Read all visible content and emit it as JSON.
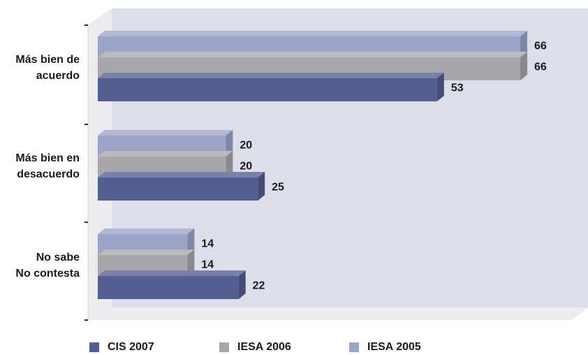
{
  "chart_data": {
    "type": "bar",
    "orientation": "horizontal",
    "categories": [
      [
        "Más bien de",
        "acuerdo"
      ],
      [
        "Más bien en",
        "desacuerdo"
      ],
      [
        "No sabe",
        "No contesta"
      ]
    ],
    "series": [
      {
        "name": "IESA 2005",
        "values": [
          66,
          20,
          14
        ],
        "color": "#9ca4c8"
      },
      {
        "name": "IESA 2006",
        "values": [
          66,
          20,
          14
        ],
        "color": "#a8a8ac"
      },
      {
        "name": "CIS 2007",
        "values": [
          53,
          25,
          22
        ],
        "color": "#535e92"
      }
    ],
    "legend_order": [
      "CIS 2007",
      "IESA 2006",
      "IESA 2005"
    ],
    "legend_position": "bottom",
    "xlim": [
      0,
      66
    ],
    "style": "3d",
    "grid": false,
    "background_color": "#dcdeea"
  }
}
